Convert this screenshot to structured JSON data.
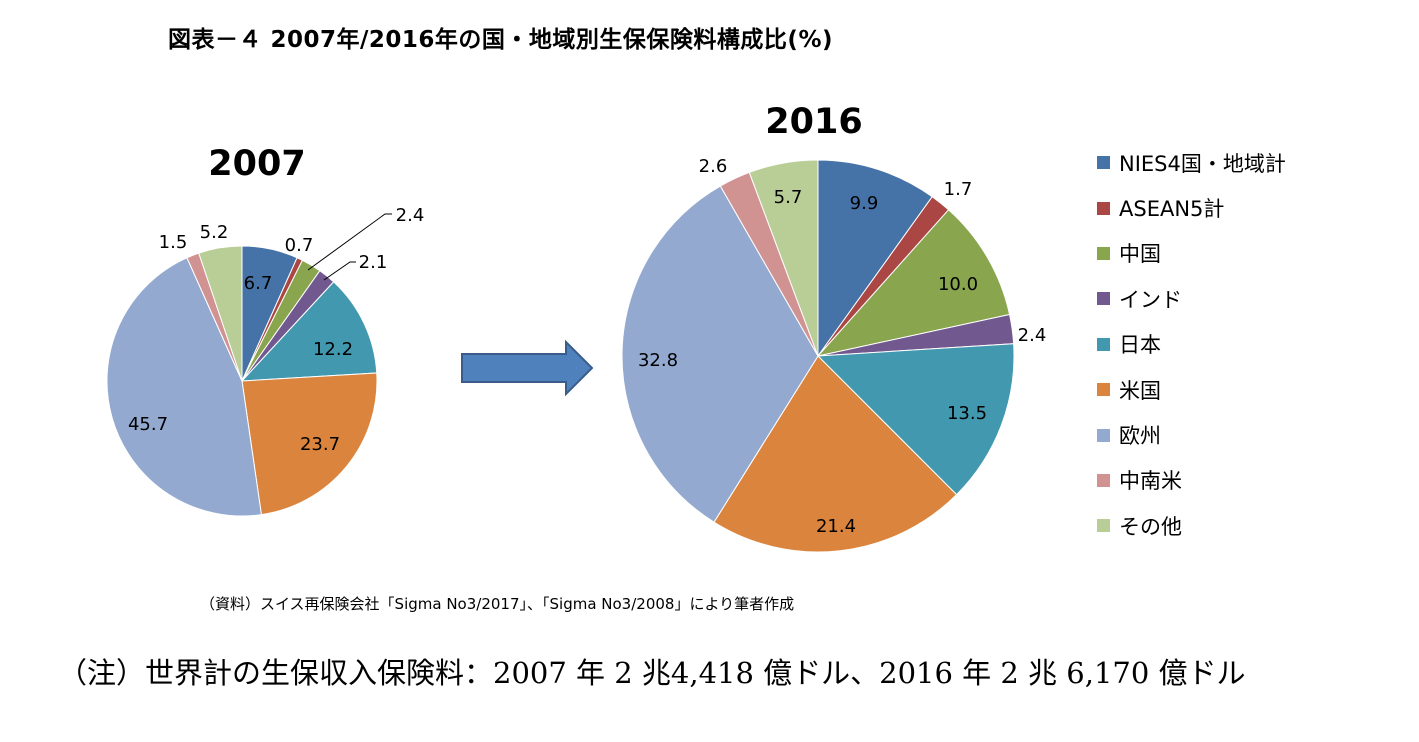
{
  "title": "図表－４ 2007年/2016年の国・地域別生保保険料構成比(%)",
  "source": "（資料）スイス再保険会社「Sigma No3/2017」、「Sigma No3/2008」により筆者作成",
  "note": "（注）世界計の生保収入保険料：2007 年 2 兆4,418 億ドル、2016 年 2 兆 6,170 億ドル",
  "legend": {
    "placement": "right",
    "items": [
      {
        "label": "NIES4国・地域計",
        "color": "#4572A7"
      },
      {
        "label": "ASEAN5計",
        "color": "#AA4643"
      },
      {
        "label": "中国",
        "color": "#89A54E"
      },
      {
        "label": "インド",
        "color": "#71588F"
      },
      {
        "label": "日本",
        "color": "#4198AF"
      },
      {
        "label": "米国",
        "color": "#DB843D"
      },
      {
        "label": "欧州",
        "color": "#93A9CF"
      },
      {
        "label": "中南米",
        "color": "#D19392"
      },
      {
        "label": "その他",
        "color": "#B9CD96"
      }
    ]
  },
  "arrow": {
    "icon": "right-arrow-icon",
    "color": "#4F81BD"
  },
  "chart_data": [
    {
      "type": "pie",
      "title": "2007",
      "categories": [
        "NIES4国・地域計",
        "ASEAN5計",
        "中国",
        "インド",
        "日本",
        "米国",
        "欧州",
        "中南米",
        "その他"
      ],
      "values": [
        6.7,
        0.7,
        2.4,
        2.1,
        12.2,
        23.7,
        45.7,
        1.5,
        5.2
      ],
      "labels": [
        "6.7",
        "0.7",
        "2.4",
        "2.1",
        "12.2",
        "23.7",
        "45.7",
        "1.5",
        "5.2"
      ],
      "colors": [
        "#4572A7",
        "#AA4643",
        "#89A54E",
        "#71588F",
        "#4198AF",
        "#DB843D",
        "#93A9CF",
        "#D19392",
        "#B9CD96"
      ],
      "start": "12 o'clock",
      "direction": "clockwise"
    },
    {
      "type": "pie",
      "title": "2016",
      "categories": [
        "NIES4国・地域計",
        "ASEAN5計",
        "中国",
        "インド",
        "日本",
        "米国",
        "欧州",
        "中南米",
        "その他"
      ],
      "values": [
        9.9,
        1.7,
        10.0,
        2.4,
        13.5,
        21.4,
        32.8,
        2.6,
        5.7
      ],
      "labels": [
        "9.9",
        "1.7",
        "10.0",
        "2.4",
        "13.5",
        "21.4",
        "32.8",
        "2.6",
        "5.7"
      ],
      "colors": [
        "#4572A7",
        "#AA4643",
        "#89A54E",
        "#71588F",
        "#4198AF",
        "#DB843D",
        "#93A9CF",
        "#D19392",
        "#B9CD96"
      ],
      "start": "12 o'clock",
      "direction": "clockwise"
    }
  ]
}
